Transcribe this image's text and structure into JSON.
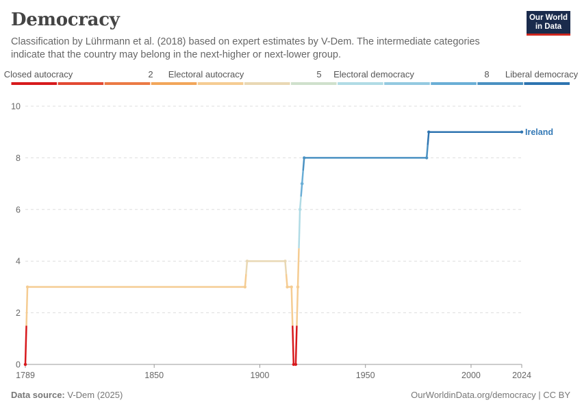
{
  "header": {
    "title": "Democracy",
    "subtitle": "Classification by Lührmann et al. (2018) based on expert estimates by V-Dem. The intermediate categories indicate that the country may belong in the next-higher or next-lower group.",
    "logo_line1": "Our World",
    "logo_line2": "in Data"
  },
  "footer": {
    "source_label": "Data source:",
    "source_value": "V-Dem (2025)",
    "url": "OurWorldinData.org/democracy | CC BY"
  },
  "colors": {
    "scale": [
      "#d7191c",
      "#e24932",
      "#eb7a45",
      "#f2a65a",
      "#f5cc92",
      "#e9d8b4",
      "#cfe0cc",
      "#b0dbe5",
      "#93c9e0",
      "#6aaed6",
      "#4a91c2",
      "#2e74b0"
    ],
    "accent": "#3479b6",
    "grid": "#dddddd"
  },
  "chart_data": {
    "type": "line",
    "title": "Democracy",
    "color_legend": {
      "labels": [
        "Closed autocracy",
        "2",
        "Electoral autocracy",
        "5",
        "Electoral democracy",
        "8",
        "Liberal democracy"
      ]
    },
    "xlim": [
      1789,
      2024
    ],
    "ylim": [
      0,
      10
    ],
    "x_ticks": [
      1789,
      1850,
      1900,
      1950,
      2000,
      2024
    ],
    "y_ticks": [
      0,
      2,
      4,
      6,
      8,
      10
    ],
    "series": [
      {
        "name": "Ireland",
        "segments": [
          {
            "x0": 1789,
            "x1": 1789,
            "y": 0
          },
          {
            "x0": 1790,
            "x1": 1893,
            "y": 3
          },
          {
            "x0": 1894,
            "x1": 1912,
            "y": 4
          },
          {
            "x0": 1913,
            "x1": 1915,
            "y": 3
          },
          {
            "x0": 1916,
            "x1": 1917,
            "y": 0
          },
          {
            "x0": 1918,
            "x1": 1918,
            "y": 3
          },
          {
            "x0": 1919,
            "x1": 1919,
            "y": 6
          },
          {
            "x0": 1920,
            "x1": 1920,
            "y": 7
          },
          {
            "x0": 1921,
            "x1": 1979,
            "y": 8
          },
          {
            "x0": 1980,
            "x1": 2024,
            "y": 9
          }
        ]
      }
    ]
  }
}
